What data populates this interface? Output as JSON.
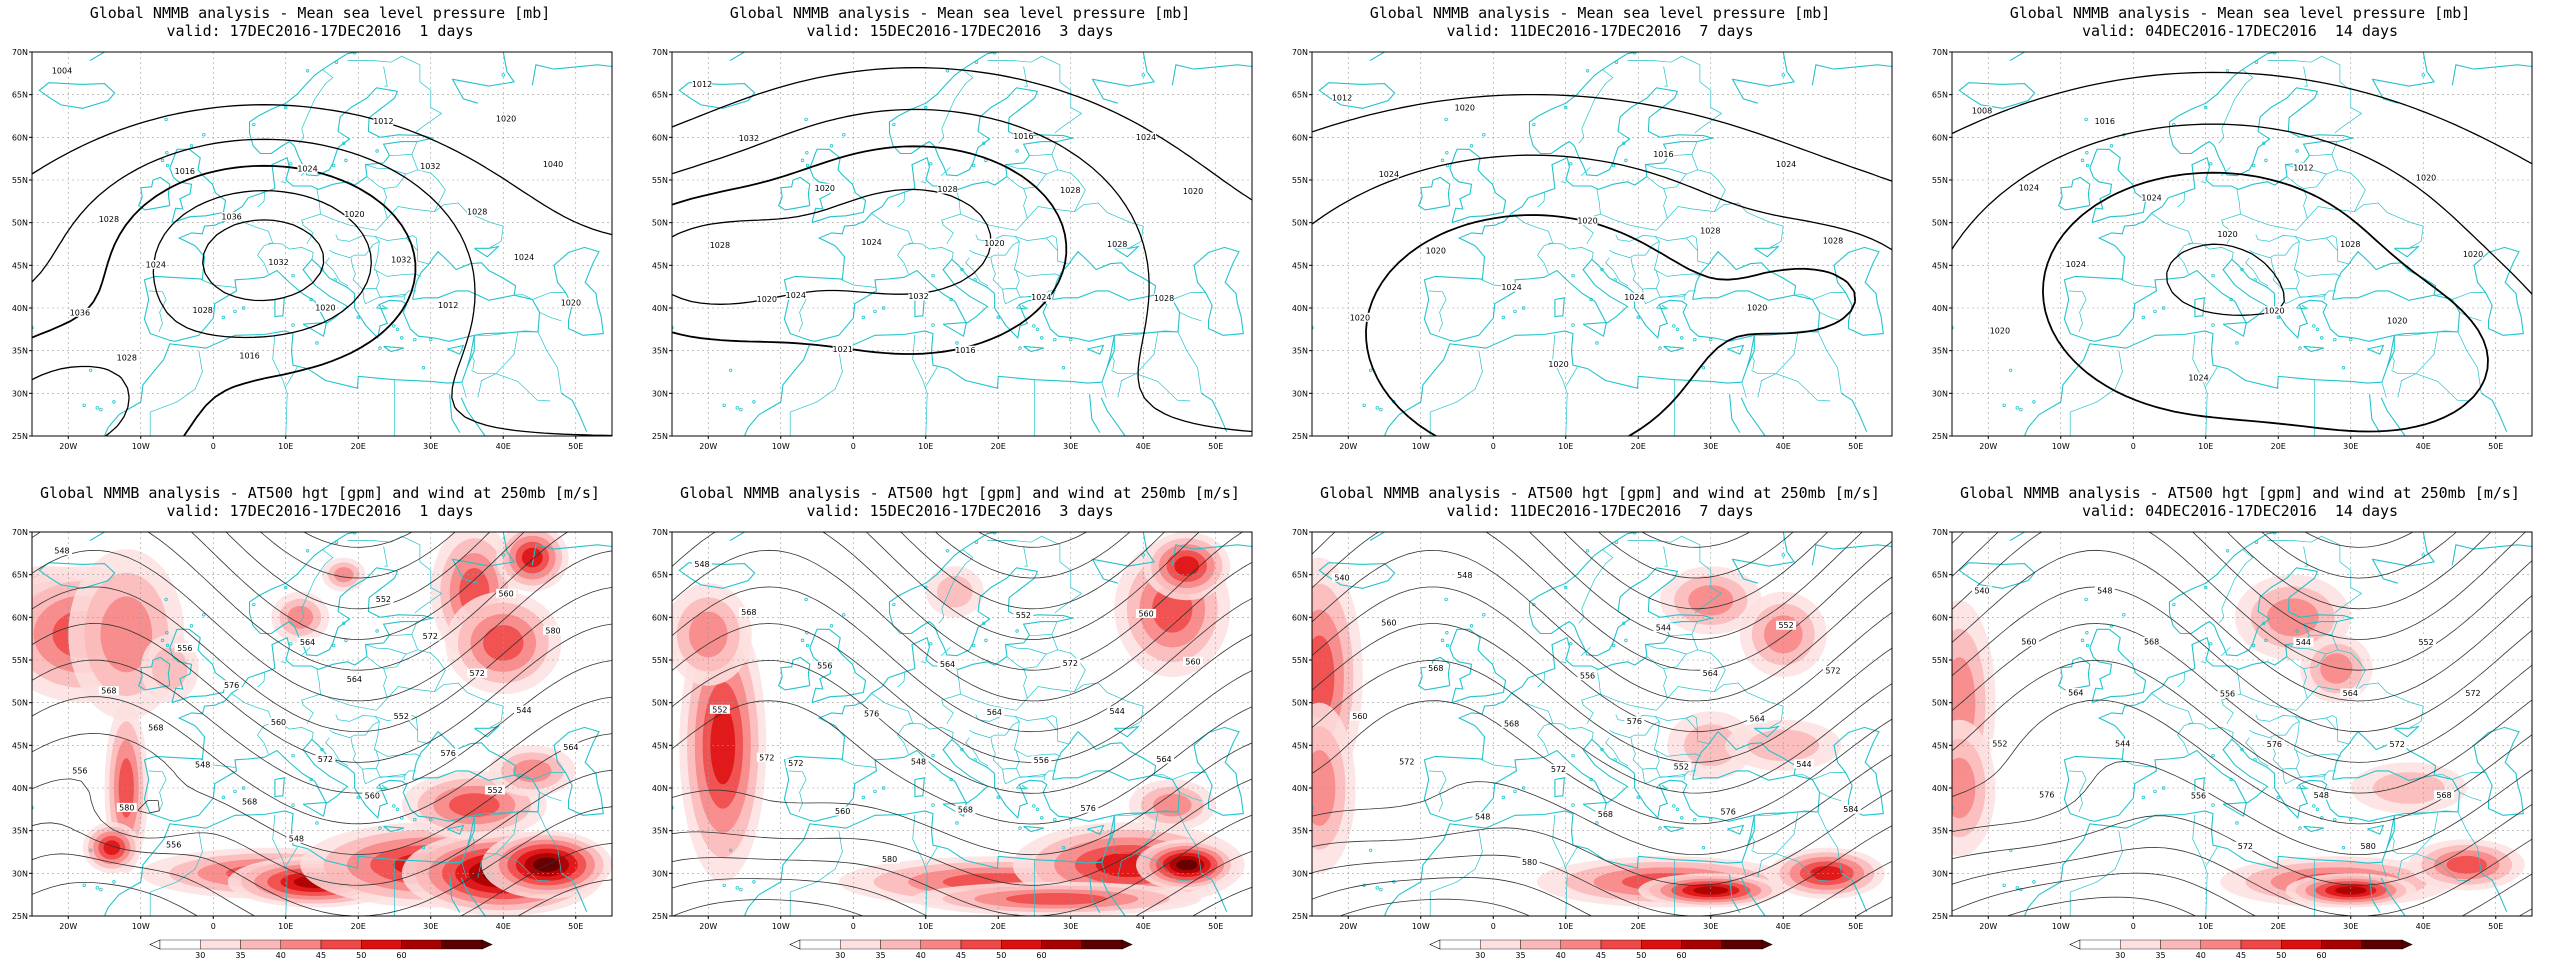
{
  "colors": {
    "coast": "#22c4cc",
    "grid": "#9a9a9a",
    "contour": "#000000",
    "wind": [
      "#fde0e0",
      "#fbb8b8",
      "#f78585",
      "#f04848",
      "#dd1010",
      "#a80000",
      "#5a0000"
    ]
  },
  "axes": {
    "lat_labels": [
      "70N",
      "65N",
      "60N",
      "55N",
      "50N",
      "45N",
      "40N",
      "35N",
      "30N",
      "25N"
    ],
    "lon_labels": [
      "20W",
      "10W",
      "0",
      "10E",
      "20E",
      "30E",
      "40E",
      "50E"
    ]
  },
  "legend": {
    "values": [
      "30",
      "35",
      "40",
      "45",
      "50",
      "60"
    ]
  },
  "panels": [
    {
      "title1": "Global NMMB analysis - Mean sea level pressure [mb]",
      "title2": "valid: 17DEC2016-17DEC2016  1 days",
      "kind": "mslp",
      "contour_labels": [
        "1004",
        "1012",
        "1016",
        "1020",
        "1024",
        "1028",
        "1032",
        "1036",
        "1040",
        "1020",
        "1024",
        "1028",
        "1032",
        "1036",
        "1032",
        "1028",
        "1024",
        "1020",
        "1028",
        "1012",
        "1016",
        "1020"
      ]
    },
    {
      "title1": "Global NMMB analysis - Mean sea level pressure [mb]",
      "title2": "valid: 15DEC2016-17DEC2016  3 days",
      "kind": "mslp",
      "contour_labels": [
        "1012",
        "1016",
        "1020",
        "1024",
        "1028",
        "1032",
        "1028",
        "1024",
        "1020",
        "1020",
        "1024",
        "1028",
        "1032",
        "1028",
        "1024",
        "1021",
        "1028",
        "1016",
        "1020"
      ]
    },
    {
      "title1": "Global NMMB analysis - Mean sea level pressure [mb]",
      "title2": "valid: 11DEC2016-17DEC2016  7 days",
      "kind": "mslp",
      "contour_labels": [
        "1012",
        "1016",
        "1020",
        "1024",
        "1020",
        "1024",
        "1028",
        "1024",
        "1028",
        "1024",
        "1020",
        "1020",
        "1020",
        "1020"
      ]
    },
    {
      "title1": "Global NMMB analysis - Mean sea level pressure [mb]",
      "title2": "valid: 04DEC2016-17DEC2016  14 days",
      "kind": "mslp",
      "contour_labels": [
        "1008",
        "1012",
        "1016",
        "1020",
        "1020",
        "1024",
        "1028",
        "1024",
        "1020",
        "1020",
        "1024",
        "1020",
        "1024",
        "1020"
      ]
    },
    {
      "title1": "Global NMMB analysis - AT500 hgt [gpm] and wind at 250mb [m/s]",
      "title2": "valid: 17DEC2016-17DEC2016  1 days",
      "kind": "z500",
      "contour_labels": [
        "548",
        "552",
        "556",
        "560",
        "564",
        "568",
        "572",
        "576",
        "580",
        "564",
        "568",
        "572",
        "560",
        "556",
        "552",
        "548",
        "544",
        "572",
        "580",
        "576",
        "568",
        "564",
        "560",
        "556",
        "552",
        "548"
      ]
    },
    {
      "title1": "Global NMMB analysis - AT500 hgt [gpm] and wind at 250mb [m/s]",
      "title2": "valid: 15DEC2016-17DEC2016  3 days",
      "kind": "z500",
      "contour_labels": [
        "548",
        "552",
        "556",
        "560",
        "564",
        "568",
        "572",
        "576",
        "560",
        "564",
        "572",
        "544",
        "548",
        "552",
        "556",
        "560",
        "564",
        "568",
        "572",
        "576",
        "580"
      ]
    },
    {
      "title1": "Global NMMB analysis - AT500 hgt [gpm] and wind at 250mb [m/s]",
      "title2": "valid: 11DEC2016-17DEC2016  7 days",
      "kind": "z500",
      "contour_labels": [
        "540",
        "544",
        "548",
        "552",
        "556",
        "560",
        "564",
        "568",
        "572",
        "576",
        "568",
        "564",
        "572",
        "560",
        "552",
        "548",
        "544",
        "568",
        "572",
        "576",
        "580",
        "584"
      ]
    },
    {
      "title1": "Global NMMB analysis - AT500 hgt [gpm] and wind at 250mb [m/s]",
      "title2": "valid: 04DEC2016-17DEC2016  14 days",
      "kind": "z500",
      "contour_labels": [
        "540",
        "544",
        "548",
        "552",
        "556",
        "560",
        "564",
        "568",
        "572",
        "576",
        "564",
        "572",
        "556",
        "552",
        "548",
        "544",
        "568",
        "572",
        "576",
        "580"
      ]
    }
  ]
}
